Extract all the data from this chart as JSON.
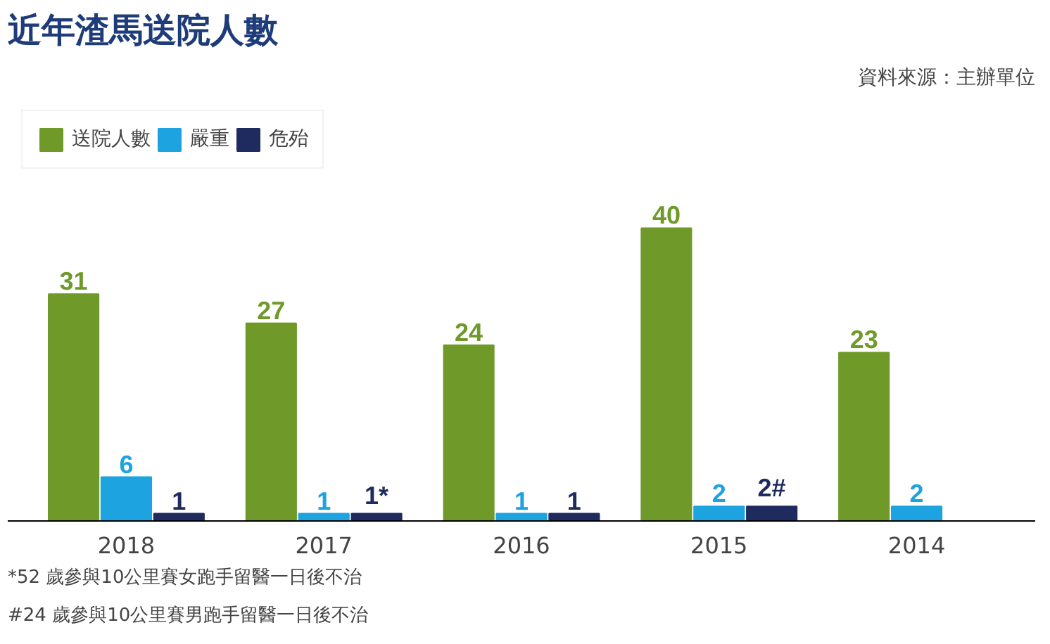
{
  "chart_data": {
    "type": "bar",
    "title": "近年渣馬送院人數",
    "categories": [
      "2018",
      "2017",
      "2016",
      "2015",
      "2014"
    ],
    "series": [
      {
        "name": "送院人數",
        "color": "#6f9a2a",
        "values": [
          31,
          27,
          24,
          40,
          23
        ]
      },
      {
        "name": "嚴重",
        "color": "#1ca3e0",
        "values": [
          6,
          1,
          1,
          2,
          2
        ]
      },
      {
        "name": "危殆",
        "color": "#1f2b5e",
        "values": [
          1,
          1,
          1,
          2,
          null
        ],
        "value_labels": [
          "1",
          "1*",
          "1",
          "2#",
          null
        ]
      }
    ],
    "data_labels": true,
    "legend": "top left",
    "grid": false,
    "annotations": [
      "資料來源：主辦單位",
      "*52 歲參與10公里賽女跑手留醫一日後不治",
      "#24 歲參與10公里賽男跑手留醫一日後不治"
    ]
  }
}
